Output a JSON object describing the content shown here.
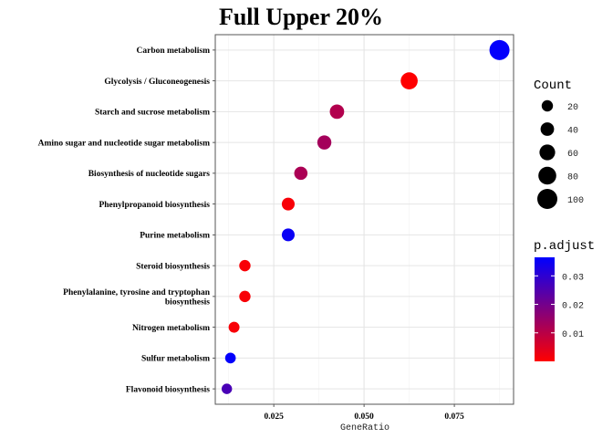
{
  "chart_data": {
    "type": "scatter",
    "title": "Full Upper 20%",
    "xlabel": "GeneRatio",
    "ylabel": "",
    "xlim": [
      0.0088,
      0.0914
    ],
    "xticks": [
      0.025,
      0.05,
      0.075
    ],
    "xtick_labels": [
      "0.025",
      "0.050",
      "0.075"
    ],
    "grid": true,
    "categories": [
      "Carbon metabolism",
      "Glycolysis / Gluconeogenesis",
      "Starch and sucrose metabolism",
      "Amino sugar and nucleotide sugar metabolism",
      "Biosynthesis of nucleotide sugars",
      "Phenylpropanoid biosynthesis",
      "Purine metabolism",
      "Steroid biosynthesis",
      "Phenylalanine, tyrosine and tryptophan\nbiosynthesis",
      "Nitrogen metabolism",
      "Sulfur metabolism",
      "Flavonoid biosynthesis"
    ],
    "points": [
      {
        "pathway": "Carbon metabolism",
        "gene_ratio": 0.0875,
        "count": 100,
        "p_adjust": 0.036
      },
      {
        "pathway": "Glycolysis / Gluconeogenesis",
        "gene_ratio": 0.0625,
        "count": 72,
        "p_adjust": 0.0002
      },
      {
        "pathway": "Starch and sucrose metabolism",
        "gene_ratio": 0.0425,
        "count": 48,
        "p_adjust": 0.011
      },
      {
        "pathway": "Amino sugar and nucleotide sugar metabolism",
        "gene_ratio": 0.039,
        "count": 45,
        "p_adjust": 0.013
      },
      {
        "pathway": "Biosynthesis of nucleotide sugars",
        "gene_ratio": 0.0325,
        "count": 38,
        "p_adjust": 0.012
      },
      {
        "pathway": "Phenylpropanoid biosynthesis",
        "gene_ratio": 0.029,
        "count": 34,
        "p_adjust": 0.001
      },
      {
        "pathway": "Purine metabolism",
        "gene_ratio": 0.029,
        "count": 34,
        "p_adjust": 0.035
      },
      {
        "pathway": "Steroid biosynthesis",
        "gene_ratio": 0.017,
        "count": 20,
        "p_adjust": 0.0008
      },
      {
        "pathway": "Phenylalanine, tyrosine and tryptophan\nbiosynthesis",
        "gene_ratio": 0.017,
        "count": 20,
        "p_adjust": 0.001
      },
      {
        "pathway": "Nitrogen metabolism",
        "gene_ratio": 0.014,
        "count": 16,
        "p_adjust": 0.001
      },
      {
        "pathway": "Sulfur metabolism",
        "gene_ratio": 0.013,
        "count": 14,
        "p_adjust": 0.036
      },
      {
        "pathway": "Flavonoid biosynthesis",
        "gene_ratio": 0.012,
        "count": 12,
        "p_adjust": 0.026
      }
    ],
    "size_legend": {
      "title": "Count",
      "values": [
        20,
        40,
        60,
        80,
        100
      ],
      "labels": [
        "20",
        "40",
        "60",
        "80",
        "100"
      ]
    },
    "color_legend": {
      "title": "p.adjust",
      "min": 0.0,
      "max": 0.0365,
      "ticks": [
        0.03,
        0.02,
        0.01
      ],
      "tick_labels": [
        "0.03",
        "0.02",
        "0.01"
      ],
      "low_color": "#ff0000",
      "high_color": "#0000ff"
    },
    "legend_position": "right"
  }
}
